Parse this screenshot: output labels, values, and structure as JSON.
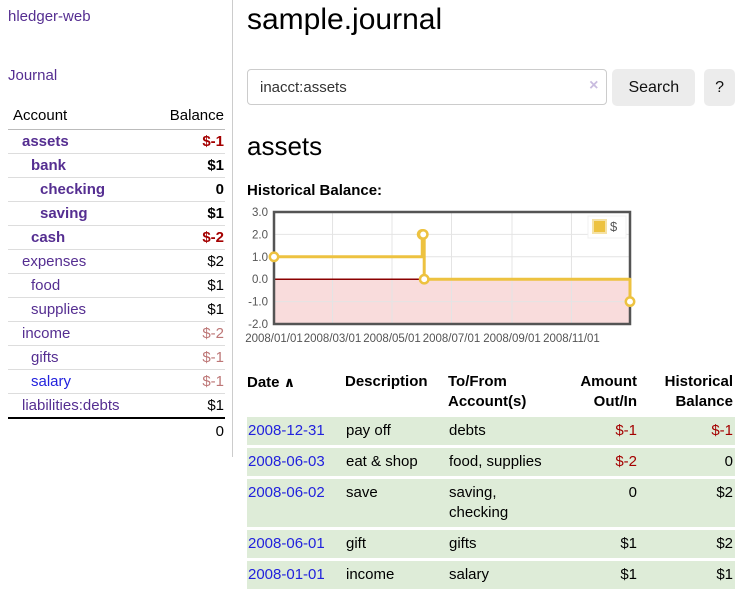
{
  "sidebar": {
    "brand": "hledger-web",
    "journal_link": "Journal",
    "accounts": {
      "header_account": "Account",
      "header_balance": "Balance",
      "rows": [
        {
          "name": "assets",
          "depth": 0,
          "bold": true,
          "name_color": "purple",
          "balance": "$-1",
          "balance_style": "neg"
        },
        {
          "name": "bank",
          "depth": 1,
          "bold": true,
          "name_color": "purple",
          "balance": "$1",
          "balance_style": "plain"
        },
        {
          "name": "checking",
          "depth": 2,
          "bold": true,
          "name_color": "purple",
          "balance": "0",
          "balance_style": "plain"
        },
        {
          "name": "saving",
          "depth": 2,
          "bold": true,
          "name_color": "purple",
          "balance": "$1",
          "balance_style": "plain"
        },
        {
          "name": "cash",
          "depth": 1,
          "bold": true,
          "name_color": "purple",
          "balance": "$-2",
          "balance_style": "neg"
        },
        {
          "name": "expenses",
          "depth": 0,
          "bold": false,
          "name_color": "purple",
          "balance": "$2",
          "balance_style": "plain"
        },
        {
          "name": "food",
          "depth": 1,
          "bold": false,
          "name_color": "purple",
          "balance": "$1",
          "balance_style": "plain"
        },
        {
          "name": "supplies",
          "depth": 1,
          "bold": false,
          "name_color": "purple",
          "balance": "$1",
          "balance_style": "plain"
        },
        {
          "name": "income",
          "depth": 0,
          "bold": false,
          "name_color": "purple",
          "balance": "$-2",
          "balance_style": "dimneg"
        },
        {
          "name": "gifts",
          "depth": 1,
          "bold": false,
          "name_color": "purple",
          "balance": "$-1",
          "balance_style": "dimneg"
        },
        {
          "name": "salary",
          "depth": 1,
          "bold": false,
          "name_color": "blue",
          "balance": "$-1",
          "balance_style": "dimneg"
        },
        {
          "name": "liabilities:debts",
          "depth": 0,
          "bold": false,
          "name_color": "purple",
          "balance": "$1",
          "balance_style": "plain"
        }
      ],
      "total": "0"
    }
  },
  "main": {
    "title": "sample.journal",
    "search": {
      "value": "inacct:assets",
      "clear_icon": "×",
      "button_label": "Search",
      "help_label": "?"
    },
    "account_heading": "assets",
    "chart_label": "Historical Balance:"
  },
  "chart_data": {
    "type": "line",
    "step": true,
    "title": "Historical Balance",
    "series": [
      {
        "name": "$",
        "color": "#edc240",
        "points": [
          {
            "date": "2008-01-01",
            "value": 1
          },
          {
            "date": "2008-06-01",
            "value": 2
          },
          {
            "date": "2008-06-02",
            "value": 2
          },
          {
            "date": "2008-06-03",
            "value": 0
          },
          {
            "date": "2008-12-31",
            "value": -1
          }
        ]
      }
    ],
    "xlim": [
      "2008-01-01",
      "2008-12-31"
    ],
    "ylim": [
      -2,
      3
    ],
    "x_ticks": [
      {
        "date": "2008-01-01",
        "label": "2008/01/01"
      },
      {
        "date": "2008-03-01",
        "label": "2008/03/01"
      },
      {
        "date": "2008-05-01",
        "label": "2008/05/01"
      },
      {
        "date": "2008-07-01",
        "label": "2008/07/01"
      },
      {
        "date": "2008-09-01",
        "label": "2008/09/01"
      },
      {
        "date": "2008-11-01",
        "label": "2008/11/01"
      }
    ],
    "y_ticks": [
      {
        "v": 3,
        "label": "3.0"
      },
      {
        "v": 2,
        "label": "2.0"
      },
      {
        "v": 1,
        "label": "1.0"
      },
      {
        "v": 0,
        "label": "0.0"
      },
      {
        "v": -1,
        "label": "-1.0"
      },
      {
        "v": -2,
        "label": "-2.0"
      }
    ],
    "grid": true,
    "legend_position": "top-right",
    "legend_label": "$",
    "colors": {
      "negative_region": "#f9dcdc",
      "zero_line": "#8b0000",
      "gridline": "#e4e4e4",
      "plot_border": "#545454",
      "tick_text": "#545454",
      "marker_fill": "#ffffff",
      "legend_swatch_border": "#f5e2a5"
    }
  },
  "register": {
    "headers": {
      "date": "Date",
      "sort_icon": "∧",
      "description": "Description",
      "accounts": "To/From Account(s)",
      "amount": "Amount Out/In",
      "balance": "Historical Balance"
    },
    "rows": [
      {
        "date": "2008-12-31",
        "description": "pay off",
        "accounts": "debts",
        "amount": "$-1",
        "amount_negative": true,
        "balance": "$-1",
        "balance_negative": true
      },
      {
        "date": "2008-06-03",
        "description": "eat & shop",
        "accounts": "food, supplies",
        "amount": "$-2",
        "amount_negative": true,
        "balance": "0",
        "balance_negative": false
      },
      {
        "date": "2008-06-02",
        "description": "save",
        "accounts": "saving,\nchecking",
        "amount": "0",
        "amount_negative": false,
        "balance": "$2",
        "balance_negative": false
      },
      {
        "date": "2008-06-01",
        "description": "gift",
        "accounts": "gifts",
        "amount": "$1",
        "amount_negative": false,
        "balance": "$2",
        "balance_negative": false
      },
      {
        "date": "2008-01-01",
        "description": "income",
        "accounts": "salary",
        "amount": "$1",
        "amount_negative": false,
        "balance": "$1",
        "balance_negative": false
      }
    ]
  }
}
